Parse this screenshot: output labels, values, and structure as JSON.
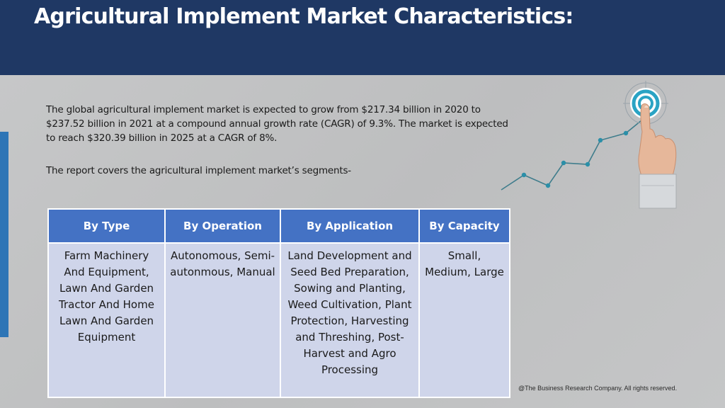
{
  "header": {
    "title": "Agricultural Implement Market Characteristics:"
  },
  "body": {
    "paragraph1": "The global agricultural implement market is expected to grow from $217.34 billion in 2020 to $237.52 billion in 2021 at a compound annual growth rate (CAGR) of 9.3%. The market is expected to reach $320.39 billion in 2025 at a CAGR of 8%.",
    "paragraph2": "The report covers the agricultural implement market’s segments-"
  },
  "table": {
    "headers": [
      "By Type",
      "By Operation",
      "By Application",
      "By Capacity"
    ],
    "row": [
      "Farm Machinery And Equipment, Lawn And Garden Tractor And Home Lawn And Garden Equipment",
      "Autonomous, Semi-autonmous, Manual",
      "Land Development and Seed Bed Preparation, Sowing and Planting, Weed Cultivation, Plant Protection, Harvesting and Threshing, Post-Harvest and Agro Processing",
      "Small, Medium, Large"
    ]
  },
  "footer": {
    "copyright": "@The Business Research Company. All rights reserved."
  },
  "colors": {
    "header_bg": "#1f3864",
    "table_header_bg": "#4472c4",
    "table_cell_bg": "#cfd5ea",
    "accent_bar": "#2e75b6",
    "target_ring": "#2aa3c4"
  },
  "icons": {
    "illustration": "hand-touching-target-growth-chart-icon"
  }
}
